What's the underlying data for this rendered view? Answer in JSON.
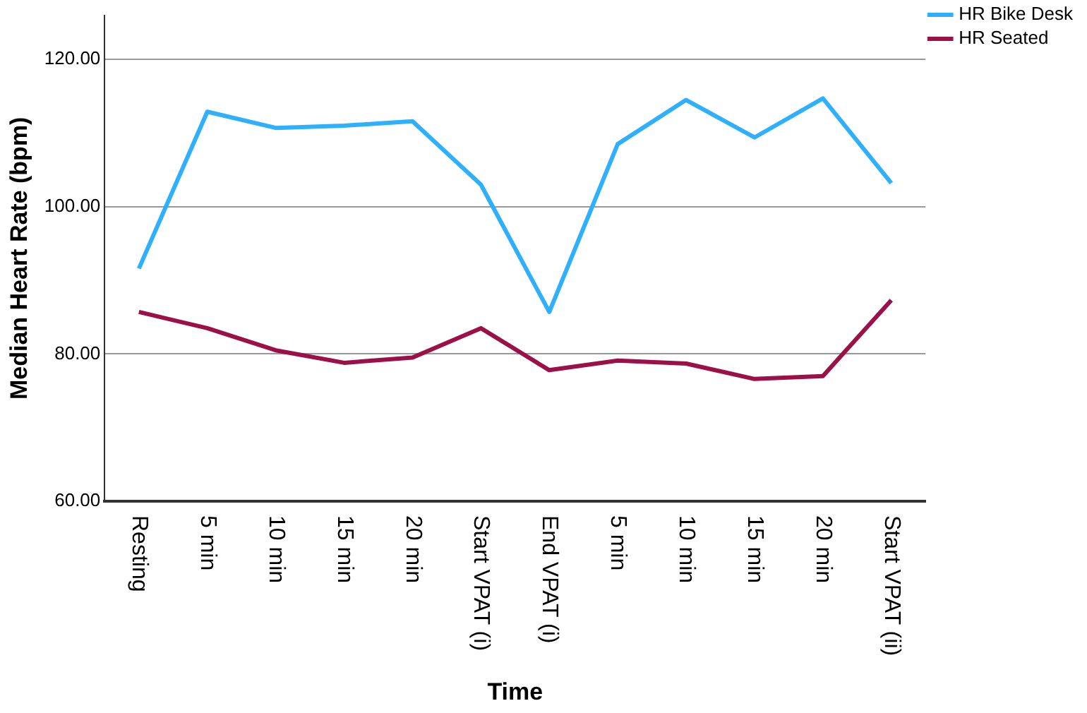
{
  "chart_data": {
    "type": "line",
    "xlabel": "Time",
    "ylabel": "Median Heart Rate (bpm)",
    "categories": [
      "Resting",
      "5 min",
      "10 min",
      "15 min",
      "20 min",
      "Start VPAT (i)",
      "End VPAT (i)",
      "5 min",
      "10 min",
      "15 min",
      "20 min",
      "Start VPAT (ii)"
    ],
    "series": [
      {
        "name": "HR Bike Desk",
        "color": "#2eb0ff",
        "values": [
          91.6,
          112.9,
          110.7,
          111.0,
          111.6,
          103.0,
          85.7,
          108.5,
          114.5,
          109.4,
          114.7,
          103.2
        ]
      },
      {
        "name": "HR Seated",
        "color": "#9c1048",
        "values": [
          85.7,
          83.5,
          80.5,
          78.8,
          79.5,
          83.5,
          77.8,
          79.1,
          78.7,
          76.6,
          77.0,
          87.3
        ]
      }
    ],
    "ylim": [
      60,
      126
    ],
    "yticks": [
      {
        "value": 60,
        "label": "60.00"
      },
      {
        "value": 80,
        "label": "80.00"
      },
      {
        "value": 100,
        "label": "100.00"
      },
      {
        "value": 120,
        "label": "120.00"
      }
    ],
    "grid": "y",
    "legend": "top right",
    "marker": "none",
    "line_style": "solid"
  }
}
